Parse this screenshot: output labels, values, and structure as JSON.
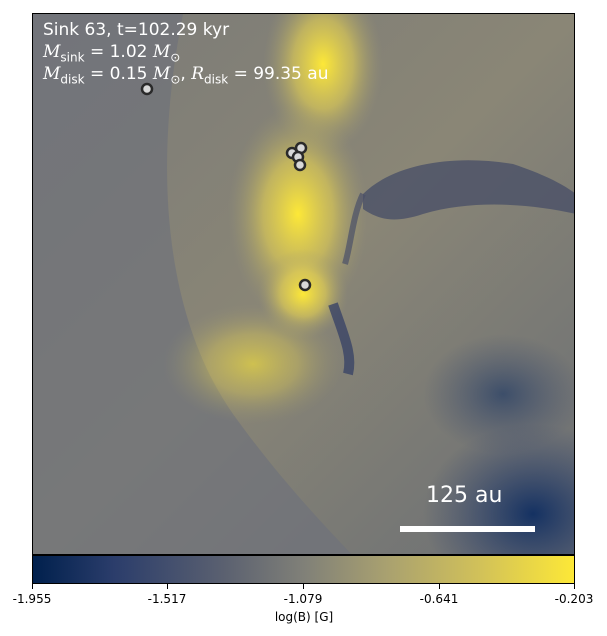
{
  "annotation": {
    "line1": "Sink 63, t=102.29 kyr",
    "msink_symbol": "M",
    "msink_sub": "sink",
    "msink_value": "= 1.02",
    "mdisk_symbol": "M",
    "mdisk_sub": "disk",
    "mdisk_value": "= 0.15",
    "rdisk_symbol": "R",
    "rdisk_sub": "disk",
    "rdisk_value": "= 99.35 au",
    "sun_symbol": "⊙"
  },
  "scalebar": {
    "label": "125 au"
  },
  "colorbar": {
    "label": "log(B) [G]",
    "ticks": [
      "-1.955",
      "-1.517",
      "-1.079",
      "-0.641",
      "-0.203"
    ]
  },
  "colors": {
    "low": "#00204d",
    "mid": "#808078",
    "high": "#fde837",
    "marker_fill": "#d8d8d8",
    "marker_edge": "#2a2a2a"
  }
}
